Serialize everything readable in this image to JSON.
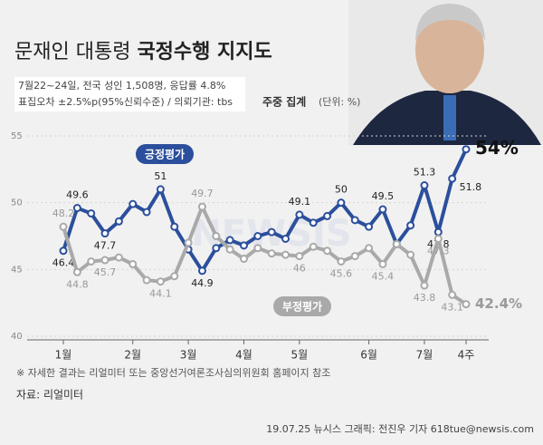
{
  "chart_data": {
    "type": "line",
    "title": "문재인 대통령",
    "title_emphasis": "국정수행 지지도",
    "subtitle": [
      "7월22~24일, 전국 성인 1,508명, 응답률 4.8%",
      "표집오차 ±2.5%p(95%신뢰수준) / 의뢰기관: tbs"
    ],
    "unit_note": "주중 집계",
    "unit": "(단위: %)",
    "categories": [
      "1월",
      null,
      null,
      null,
      null,
      "2월",
      null,
      null,
      null,
      "3월",
      null,
      null,
      null,
      "4월",
      null,
      null,
      null,
      "5월",
      null,
      null,
      null,
      null,
      "6월",
      null,
      null,
      null,
      "7월",
      null,
      null,
      "4주"
    ],
    "series": [
      {
        "name": "긍정평가",
        "color": "#2b4f9c",
        "values": [
          46.4,
          49.6,
          49.2,
          47.7,
          48.6,
          49.9,
          49.3,
          51,
          48.2,
          46.5,
          44.9,
          46.6,
          47.2,
          46.8,
          47.5,
          47.8,
          47.3,
          49.1,
          48.5,
          49.0,
          50,
          48.7,
          48.2,
          49.5,
          46.9,
          48.3,
          51.3,
          47.8,
          51.8,
          54
        ],
        "value_labels": [
          "46.4",
          "49.6",
          null,
          "47.7",
          null,
          null,
          null,
          "51",
          null,
          null,
          "44.9",
          null,
          null,
          null,
          null,
          null,
          null,
          "49.1",
          null,
          null,
          "50",
          null,
          null,
          "49.5",
          null,
          null,
          "51.3",
          "47.8",
          "51.8",
          "54%"
        ]
      },
      {
        "name": "부정평가",
        "color": "#a9a9a9",
        "values": [
          48.2,
          44.8,
          45.6,
          45.7,
          45.9,
          45.4,
          44.2,
          44.1,
          44.5,
          47.0,
          49.7,
          47.5,
          46.5,
          45.8,
          46.6,
          46.2,
          46.1,
          46,
          46.7,
          46.4,
          45.6,
          46.0,
          46.6,
          45.4,
          46.9,
          46.1,
          43.8,
          47.3,
          43.1,
          42.4
        ],
        "value_labels": [
          "48.2",
          "44.8",
          null,
          "45.7",
          null,
          null,
          null,
          "44.1",
          null,
          null,
          "49.7",
          null,
          null,
          null,
          null,
          null,
          null,
          "46",
          null,
          null,
          "45.6",
          null,
          null,
          "45.4",
          null,
          null,
          "43.8",
          "47.3",
          "43.1",
          "42.4%"
        ]
      }
    ],
    "ylim": [
      40,
      55
    ],
    "yticks": [
      40,
      45,
      50,
      55
    ],
    "grid": true,
    "notes": [
      "※ 자세한 결과는 리얼미터 또는 중앙선거여론조사심의위원회 홈페이지 참조",
      "자료: 리얼미터"
    ],
    "credit": "19.07.25 뉴시스 그래픽: 전진우 기자 618tue@newsis.com",
    "watermark": "NEWSIS"
  }
}
